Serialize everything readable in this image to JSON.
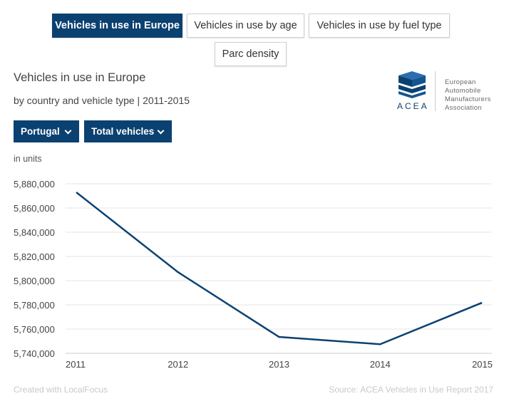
{
  "tabs": [
    {
      "label": "Vehicles in use in Europe",
      "active": true
    },
    {
      "label": "Vehicles in use by age",
      "active": false
    },
    {
      "label": "Vehicles in use by fuel type",
      "active": false
    },
    {
      "label": "Parc density",
      "active": false
    }
  ],
  "header": {
    "title": "Vehicles in use in Europe",
    "subtitle": "by country and vehicle type | 2011-2015"
  },
  "filters": {
    "country": "Portugal",
    "vehicle_type": "Total vehicles"
  },
  "logo": {
    "name_lines": [
      "European",
      "Automobile",
      "Manufacturers",
      "Association"
    ],
    "acronym": "ACEA"
  },
  "colors": {
    "accent": "#0b4171",
    "line": "#0b4171",
    "grid": "#e6e6e6"
  },
  "chart_data": {
    "type": "line",
    "unit_label": "in units",
    "x": [
      "2011",
      "2012",
      "2013",
      "2014",
      "2015"
    ],
    "series": [
      {
        "values": [
          5872500,
          5807000,
          5753500,
          5747500,
          5781500
        ]
      }
    ],
    "yticks": [
      5740000,
      5760000,
      5780000,
      5800000,
      5820000,
      5840000,
      5860000,
      5880000
    ],
    "ytick_labels": [
      "5,740,000",
      "5,760,000",
      "5,780,000",
      "5,800,000",
      "5,820,000",
      "5,840,000",
      "5,860,000",
      "5,880,000"
    ],
    "ylim": [
      5740000,
      5880000
    ],
    "grid": true
  },
  "footer": {
    "credit": "Created with LocalFocus",
    "source": "Source:  ACEA Vehicles in Use Report 2017"
  }
}
